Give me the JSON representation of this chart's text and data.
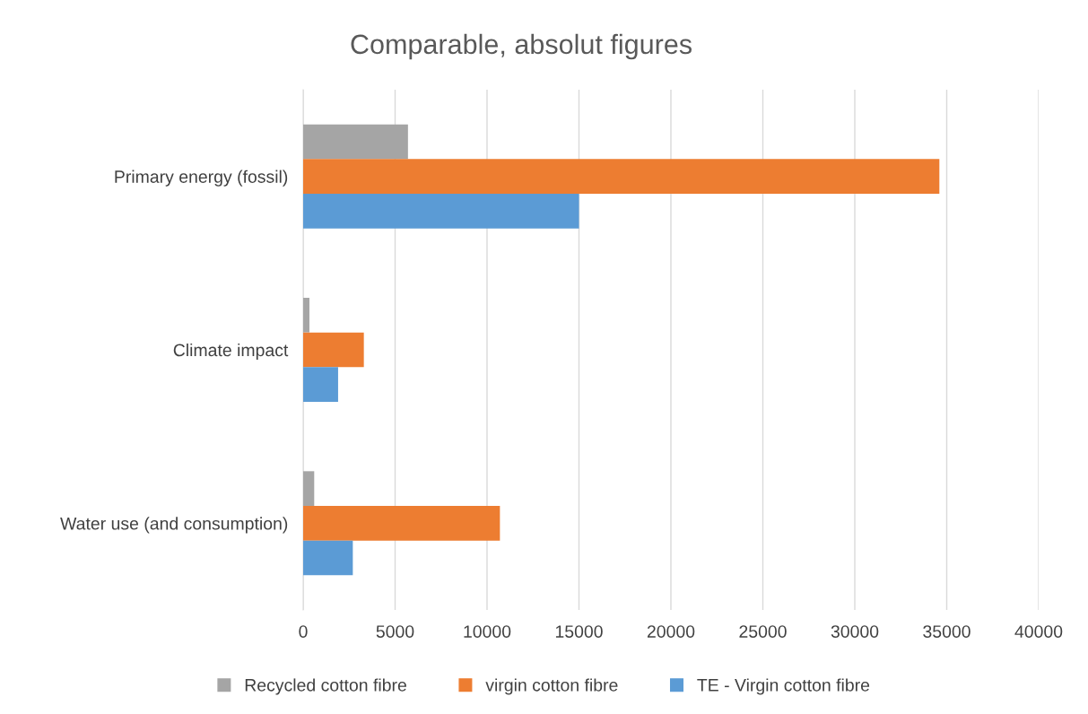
{
  "chart_data": {
    "type": "bar",
    "orientation": "horizontal",
    "title": "Comparable, absolut figures",
    "categories": [
      "Primary energy (fossil)",
      "Climate impact",
      "Water use (and consumption)"
    ],
    "series": [
      {
        "name": "Recycled cotton fibre",
        "color": "#a5a5a5",
        "values": [
          5700,
          340,
          600
        ]
      },
      {
        "name": "virgin cotton fibre",
        "color": "#ed7d31",
        "values": [
          34600,
          3300,
          10700
        ]
      },
      {
        "name": "TE - Virgin cotton fibre",
        "color": "#5b9bd5",
        "values": [
          15000,
          1900,
          2700
        ]
      }
    ],
    "xlim": [
      0,
      40000
    ],
    "xticks": [
      0,
      5000,
      10000,
      15000,
      20000,
      25000,
      30000,
      35000,
      40000
    ],
    "grid": "x",
    "legend": "bottom"
  }
}
